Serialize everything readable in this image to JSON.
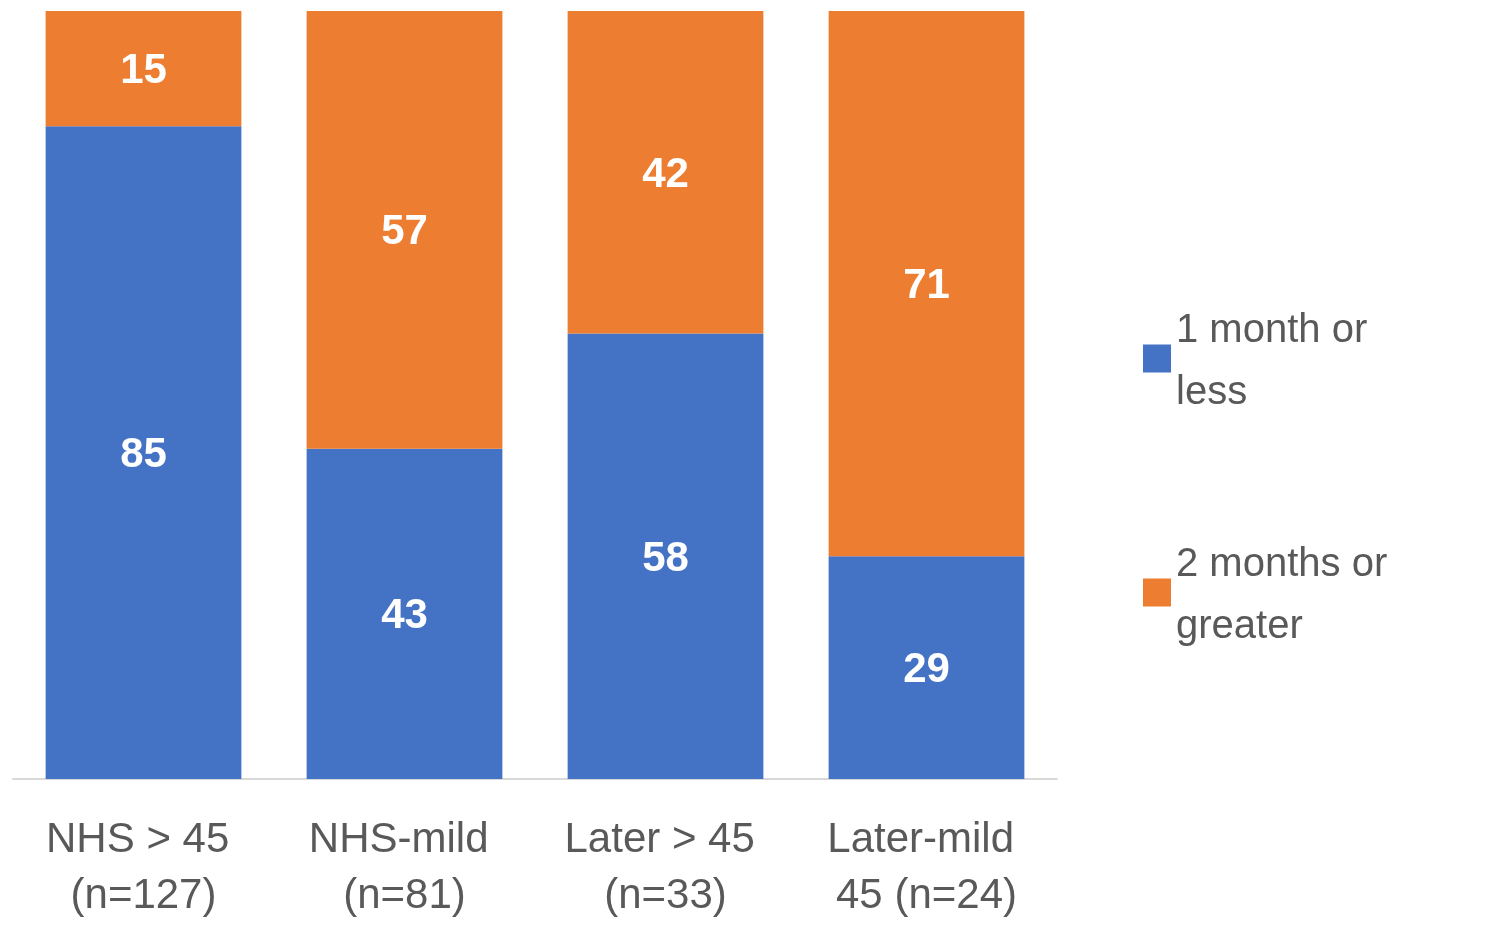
{
  "chart_data": {
    "type": "bar",
    "stacked": true,
    "data_labels": true,
    "legend": "right",
    "categories": [
      "NHS > 45 (n=127)",
      "NHS-mild (n=81)",
      "Later > 45 (n=33)",
      "Later-mild 45 (n=24)"
    ],
    "series": [
      {
        "name": "1 month or less",
        "color": "#4472c4",
        "values": [
          85,
          43,
          58,
          29
        ]
      },
      {
        "name": "2 months or greater",
        "color": "#ed7d31",
        "values": [
          15,
          57,
          42,
          71
        ]
      }
    ]
  }
}
